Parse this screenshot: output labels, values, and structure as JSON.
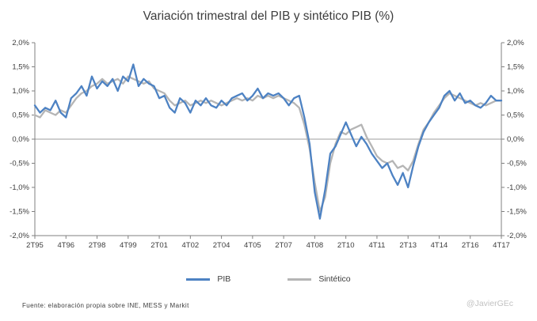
{
  "title": "Variación trimestral del PIB y sintético PIB (%)",
  "legend": {
    "pib": "PIB",
    "sintetico": "Sintético"
  },
  "footer": {
    "source": "Fuente: elaboración propia sobre INE, MESS y Markit",
    "credit": "@JavierGEc"
  },
  "colors": {
    "pib": "#4d82c3",
    "sintetico": "#b5b5b5",
    "axis": "#808080",
    "zero_line": "#9e9e9e",
    "text": "#3d3d3d"
  },
  "chart_data": {
    "type": "line",
    "title": "Variación trimestral del PIB y sintético PIB (%)",
    "xlabel": "",
    "ylabel": "",
    "ylim": [
      -2.0,
      2.0
    ],
    "grid": "zero-line-only",
    "legend_position": "bottom",
    "dual_y_axis": true,
    "y_tick_values": [
      2.0,
      1.5,
      1.0,
      0.5,
      0.0,
      -0.5,
      -1.0,
      -1.5,
      -2.0
    ],
    "y_tick_labels": [
      "2,0%",
      "1,5%",
      "1,0%",
      "0,5%",
      "0,0%",
      "-0,5%",
      "-1,0%",
      "-1,5%",
      "-2,0%"
    ],
    "x_tick_indices": [
      0,
      6,
      12,
      18,
      24,
      30,
      36,
      42,
      48,
      54,
      60,
      66,
      72,
      78,
      84,
      90
    ],
    "x_tick_labels": [
      "2T95",
      "4T96",
      "2T98",
      "4T99",
      "2T01",
      "4T02",
      "2T04",
      "4T05",
      "2T07",
      "4T08",
      "2T10",
      "4T11",
      "2T13",
      "4T14",
      "2T16",
      "4T17"
    ],
    "labels": [
      "2T95",
      "3T95",
      "4T95",
      "1T96",
      "2T96",
      "3T96",
      "4T96",
      "1T97",
      "2T97",
      "3T97",
      "4T97",
      "1T98",
      "2T98",
      "3T98",
      "4T98",
      "1T99",
      "2T99",
      "3T99",
      "4T99",
      "1T00",
      "2T00",
      "3T00",
      "4T00",
      "1T01",
      "2T01",
      "3T01",
      "4T01",
      "1T02",
      "2T02",
      "3T02",
      "4T02",
      "1T03",
      "2T03",
      "3T03",
      "4T03",
      "1T04",
      "2T04",
      "3T04",
      "4T04",
      "1T05",
      "2T05",
      "3T05",
      "4T05",
      "1T06",
      "2T06",
      "3T06",
      "4T06",
      "1T07",
      "2T07",
      "3T07",
      "4T07",
      "1T08",
      "2T08",
      "3T08",
      "4T08",
      "1T09",
      "2T09",
      "3T09",
      "4T09",
      "1T10",
      "2T10",
      "3T10",
      "4T10",
      "1T11",
      "2T11",
      "3T11",
      "4T11",
      "1T12",
      "2T12",
      "3T12",
      "4T12",
      "1T13",
      "2T13",
      "3T13",
      "4T13",
      "1T14",
      "2T14",
      "3T14",
      "4T14",
      "1T15",
      "2T15",
      "3T15",
      "4T15",
      "1T16",
      "2T16",
      "3T16",
      "4T16",
      "1T17",
      "2T17",
      "3T17",
      "4T17"
    ],
    "series": [
      {
        "name": "PIB",
        "color": "#4d82c3",
        "values": [
          0.7,
          0.55,
          0.65,
          0.6,
          0.8,
          0.55,
          0.45,
          0.85,
          0.95,
          1.1,
          0.9,
          1.3,
          1.05,
          1.2,
          1.1,
          1.25,
          1.0,
          1.3,
          1.2,
          1.55,
          1.1,
          1.25,
          1.15,
          1.1,
          0.85,
          0.9,
          0.65,
          0.55,
          0.85,
          0.75,
          0.55,
          0.8,
          0.7,
          0.85,
          0.7,
          0.65,
          0.8,
          0.7,
          0.85,
          0.9,
          0.95,
          0.8,
          0.9,
          1.05,
          0.85,
          0.95,
          0.9,
          0.95,
          0.85,
          0.7,
          0.85,
          0.9,
          0.45,
          -0.1,
          -1.1,
          -1.65,
          -1.05,
          -0.3,
          -0.15,
          0.1,
          0.35,
          0.1,
          -0.15,
          0.05,
          -0.1,
          -0.3,
          -0.45,
          -0.6,
          -0.5,
          -0.75,
          -0.95,
          -0.7,
          -1.0,
          -0.55,
          -0.15,
          0.15,
          0.35,
          0.5,
          0.65,
          0.9,
          1.0,
          0.8,
          0.95,
          0.75,
          0.8,
          0.7,
          0.65,
          0.75,
          0.9,
          0.8,
          0.8
        ]
      },
      {
        "name": "Sintético",
        "color": "#b5b5b5",
        "values": [
          0.5,
          0.45,
          0.6,
          0.55,
          0.5,
          0.6,
          0.55,
          0.7,
          0.85,
          0.95,
          1.0,
          1.1,
          1.15,
          1.25,
          1.15,
          1.2,
          1.25,
          1.15,
          1.3,
          1.25,
          1.2,
          1.15,
          1.2,
          1.05,
          1.0,
          0.95,
          0.8,
          0.7,
          0.75,
          0.8,
          0.7,
          0.75,
          0.8,
          0.75,
          0.8,
          0.75,
          0.7,
          0.75,
          0.8,
          0.85,
          0.8,
          0.85,
          0.8,
          0.9,
          0.85,
          0.9,
          0.85,
          0.9,
          0.85,
          0.8,
          0.75,
          0.65,
          0.3,
          -0.2,
          -0.9,
          -1.5,
          -1.2,
          -0.5,
          -0.1,
          0.15,
          0.1,
          0.2,
          0.25,
          0.3,
          0.05,
          -0.15,
          -0.35,
          -0.45,
          -0.5,
          -0.45,
          -0.6,
          -0.55,
          -0.65,
          -0.45,
          -0.1,
          0.2,
          0.35,
          0.55,
          0.7,
          0.85,
          0.95,
          0.9,
          0.85,
          0.8,
          0.75,
          0.7,
          0.75,
          0.7,
          0.75,
          0.8,
          0.8
        ]
      }
    ]
  }
}
